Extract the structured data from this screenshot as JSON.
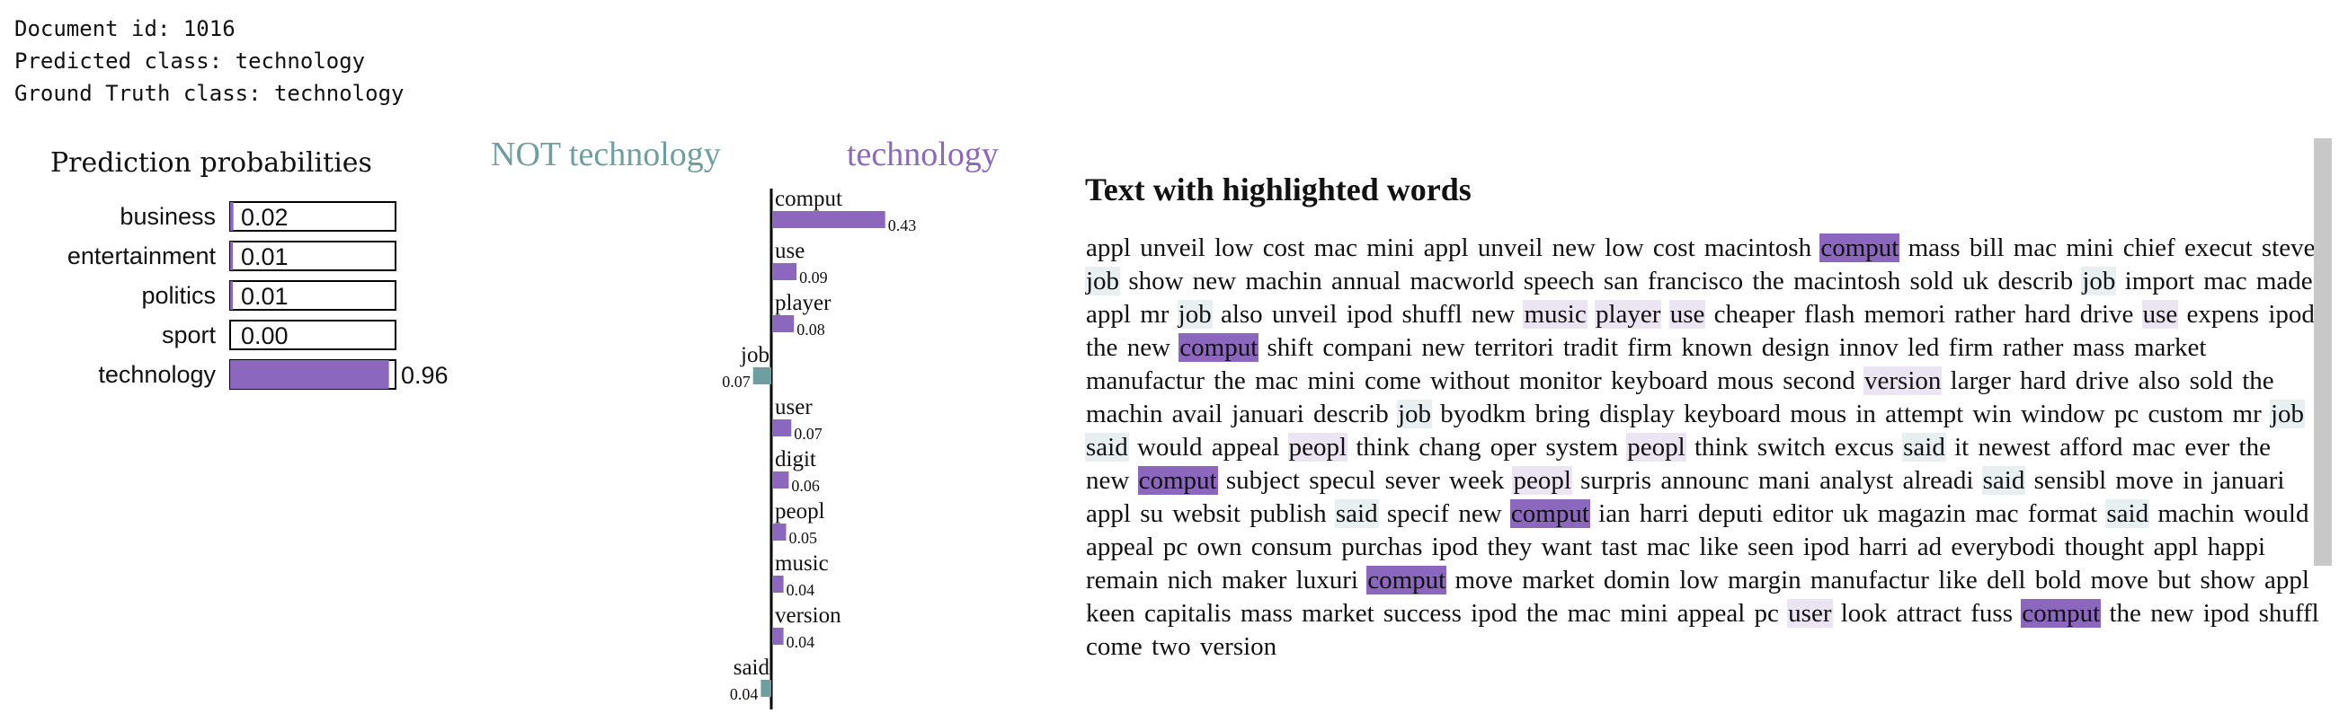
{
  "header": {
    "doc_id": "Document id: 1016",
    "predicted": "Predicted class: technology",
    "ground_truth": "Ground Truth class: technology"
  },
  "prob_panel": {
    "title": "Prediction probabilities"
  },
  "feat_panel": {
    "left_label": "NOT technology",
    "right_label": "technology"
  },
  "text_panel": {
    "title": "Text with highlighted words"
  },
  "colors": {
    "positive": "#8b67be",
    "negative": "#6d9ea0",
    "bar_border": "#000000"
  },
  "chart_data": [
    {
      "type": "bar",
      "orientation": "horizontal",
      "categories": [
        "business",
        "entertainment",
        "politics",
        "sport",
        "technology"
      ],
      "values": [
        0.02,
        0.01,
        0.01,
        0.0,
        0.96
      ],
      "value_labels": [
        "0.02",
        "0.01",
        "0.01",
        "0.00",
        "0.96"
      ],
      "xlim": [
        0,
        1
      ]
    },
    {
      "type": "bar",
      "orientation": "horizontal-diverging",
      "categories": [
        "comput",
        "use",
        "player",
        "job",
        "user",
        "digit",
        "peopl",
        "music",
        "version",
        "said"
      ],
      "values": [
        0.43,
        0.09,
        0.08,
        -0.07,
        0.07,
        0.06,
        0.05,
        0.04,
        0.04,
        -0.04
      ],
      "value_labels": [
        "0.43",
        "0.09",
        "0.08",
        "0.07",
        "0.07",
        "0.06",
        "0.05",
        "0.04",
        "0.04",
        "0.04"
      ]
    }
  ],
  "highlight_text": [
    [
      "appl",
      ""
    ],
    [
      "unveil",
      ""
    ],
    [
      "low",
      ""
    ],
    [
      "cost",
      ""
    ],
    [
      "mac",
      ""
    ],
    [
      "mini",
      ""
    ],
    [
      "appl",
      ""
    ],
    [
      "unveil",
      ""
    ],
    [
      "new",
      ""
    ],
    [
      "low",
      ""
    ],
    [
      "cost",
      ""
    ],
    [
      "macintosh",
      ""
    ],
    [
      "comput",
      "p3"
    ],
    [
      "mass",
      ""
    ],
    [
      "bill",
      ""
    ],
    [
      "mac",
      ""
    ],
    [
      "mini",
      ""
    ],
    [
      "chief",
      ""
    ],
    [
      "execut",
      ""
    ],
    [
      "steve",
      ""
    ],
    [
      "job",
      "n1"
    ],
    [
      "show",
      ""
    ],
    [
      "new",
      ""
    ],
    [
      "machin",
      ""
    ],
    [
      "annual",
      ""
    ],
    [
      "macworld",
      ""
    ],
    [
      "speech",
      ""
    ],
    [
      "san",
      ""
    ],
    [
      "francisco",
      ""
    ],
    [
      "the",
      ""
    ],
    [
      "macintosh",
      ""
    ],
    [
      "sold",
      ""
    ],
    [
      "uk",
      ""
    ],
    [
      "describ",
      ""
    ],
    [
      "job",
      "n1"
    ],
    [
      "import",
      ""
    ],
    [
      "mac",
      ""
    ],
    [
      "made",
      ""
    ],
    [
      "appl",
      ""
    ],
    [
      "mr",
      ""
    ],
    [
      "job",
      "n1"
    ],
    [
      "also",
      ""
    ],
    [
      "unveil",
      ""
    ],
    [
      "ipod",
      ""
    ],
    [
      "shuffl",
      ""
    ],
    [
      "new",
      ""
    ],
    [
      "music",
      "p1"
    ],
    [
      "player",
      "p1"
    ],
    [
      "use",
      "p1"
    ],
    [
      "cheaper",
      ""
    ],
    [
      "flash",
      ""
    ],
    [
      "memori",
      ""
    ],
    [
      "rather",
      ""
    ],
    [
      "hard",
      ""
    ],
    [
      "drive",
      ""
    ],
    [
      "use",
      "p1"
    ],
    [
      "expens",
      ""
    ],
    [
      "ipod",
      ""
    ],
    [
      "the",
      ""
    ],
    [
      "new",
      ""
    ],
    [
      "comput",
      "p3"
    ],
    [
      "shift",
      ""
    ],
    [
      "compani",
      ""
    ],
    [
      "new",
      ""
    ],
    [
      "territori",
      ""
    ],
    [
      "tradit",
      ""
    ],
    [
      "firm",
      ""
    ],
    [
      "known",
      ""
    ],
    [
      "design",
      ""
    ],
    [
      "innov",
      ""
    ],
    [
      "led",
      ""
    ],
    [
      "firm",
      ""
    ],
    [
      "rather",
      ""
    ],
    [
      "mass",
      ""
    ],
    [
      "market",
      ""
    ],
    [
      "manufactur",
      ""
    ],
    [
      "the",
      ""
    ],
    [
      "mac",
      ""
    ],
    [
      "mini",
      ""
    ],
    [
      "come",
      ""
    ],
    [
      "without",
      ""
    ],
    [
      "monitor",
      ""
    ],
    [
      "keyboard",
      ""
    ],
    [
      "mous",
      ""
    ],
    [
      "second",
      ""
    ],
    [
      "version",
      "p1"
    ],
    [
      "larger",
      ""
    ],
    [
      "hard",
      ""
    ],
    [
      "drive",
      ""
    ],
    [
      "also",
      ""
    ],
    [
      "sold",
      ""
    ],
    [
      "the",
      ""
    ],
    [
      "machin",
      ""
    ],
    [
      "avail",
      ""
    ],
    [
      "januari",
      ""
    ],
    [
      "describ",
      ""
    ],
    [
      "job",
      "n1"
    ],
    [
      "byodkm",
      ""
    ],
    [
      "bring",
      ""
    ],
    [
      "display",
      ""
    ],
    [
      "keyboard",
      ""
    ],
    [
      "mous",
      ""
    ],
    [
      "in",
      ""
    ],
    [
      "attempt",
      ""
    ],
    [
      "win",
      ""
    ],
    [
      "window",
      ""
    ],
    [
      "pc",
      ""
    ],
    [
      "custom",
      ""
    ],
    [
      "mr",
      ""
    ],
    [
      "job",
      "n1"
    ],
    [
      "said",
      "n1"
    ],
    [
      "would",
      ""
    ],
    [
      "appeal",
      ""
    ],
    [
      "peopl",
      "p1"
    ],
    [
      "think",
      ""
    ],
    [
      "chang",
      ""
    ],
    [
      "oper",
      ""
    ],
    [
      "system",
      ""
    ],
    [
      "peopl",
      "p1"
    ],
    [
      "think",
      ""
    ],
    [
      "switch",
      ""
    ],
    [
      "excus",
      ""
    ],
    [
      "said",
      "n1"
    ],
    [
      "it",
      ""
    ],
    [
      "newest",
      ""
    ],
    [
      "afford",
      ""
    ],
    [
      "mac",
      ""
    ],
    [
      "ever",
      ""
    ],
    [
      "the",
      ""
    ],
    [
      "new",
      ""
    ],
    [
      "comput",
      "p3"
    ],
    [
      "subject",
      ""
    ],
    [
      "specul",
      ""
    ],
    [
      "sever",
      ""
    ],
    [
      "week",
      ""
    ],
    [
      "peopl",
      "p1"
    ],
    [
      "surpris",
      ""
    ],
    [
      "announc",
      ""
    ],
    [
      "mani",
      ""
    ],
    [
      "analyst",
      ""
    ],
    [
      "alreadi",
      ""
    ],
    [
      "said",
      "n1"
    ],
    [
      "sensibl",
      ""
    ],
    [
      "move",
      ""
    ],
    [
      "in",
      ""
    ],
    [
      "januari",
      ""
    ],
    [
      "appl",
      ""
    ],
    [
      "su",
      ""
    ],
    [
      "websit",
      ""
    ],
    [
      "publish",
      ""
    ],
    [
      "said",
      "n1"
    ],
    [
      "specif",
      ""
    ],
    [
      "new",
      ""
    ],
    [
      "comput",
      "p3"
    ],
    [
      "ian",
      ""
    ],
    [
      "harri",
      ""
    ],
    [
      "deputi",
      ""
    ],
    [
      "editor",
      ""
    ],
    [
      "uk",
      ""
    ],
    [
      "magazin",
      ""
    ],
    [
      "mac",
      ""
    ],
    [
      "format",
      ""
    ],
    [
      "said",
      "n1"
    ],
    [
      "machin",
      ""
    ],
    [
      "would",
      ""
    ],
    [
      "appeal",
      ""
    ],
    [
      "pc",
      ""
    ],
    [
      "own",
      ""
    ],
    [
      "consum",
      ""
    ],
    [
      "purchas",
      ""
    ],
    [
      "ipod",
      ""
    ],
    [
      "they",
      ""
    ],
    [
      "want",
      ""
    ],
    [
      "tast",
      ""
    ],
    [
      "mac",
      ""
    ],
    [
      "like",
      ""
    ],
    [
      "seen",
      ""
    ],
    [
      "ipod",
      ""
    ],
    [
      "harri",
      ""
    ],
    [
      "ad",
      ""
    ],
    [
      "everybodi",
      ""
    ],
    [
      "thought",
      ""
    ],
    [
      "appl",
      ""
    ],
    [
      "happi",
      ""
    ],
    [
      "remain",
      ""
    ],
    [
      "nich",
      ""
    ],
    [
      "maker",
      ""
    ],
    [
      "luxuri",
      ""
    ],
    [
      "comput",
      "p3"
    ],
    [
      "move",
      ""
    ],
    [
      "market",
      ""
    ],
    [
      "domin",
      ""
    ],
    [
      "low",
      ""
    ],
    [
      "margin",
      ""
    ],
    [
      "manufactur",
      ""
    ],
    [
      "like",
      ""
    ],
    [
      "dell",
      ""
    ],
    [
      "bold",
      ""
    ],
    [
      "move",
      ""
    ],
    [
      "but",
      ""
    ],
    [
      "show",
      ""
    ],
    [
      "appl",
      ""
    ],
    [
      "keen",
      ""
    ],
    [
      "capitalis",
      ""
    ],
    [
      "mass",
      ""
    ],
    [
      "market",
      ""
    ],
    [
      "success",
      ""
    ],
    [
      "ipod",
      ""
    ],
    [
      "the",
      ""
    ],
    [
      "mac",
      ""
    ],
    [
      "mini",
      ""
    ],
    [
      "appeal",
      ""
    ],
    [
      "pc",
      ""
    ],
    [
      "user",
      "p1"
    ],
    [
      "look",
      ""
    ],
    [
      "attract",
      ""
    ],
    [
      "fuss",
      ""
    ],
    [
      "comput",
      "p3"
    ],
    [
      "the",
      ""
    ],
    [
      "new",
      ""
    ],
    [
      "ipod",
      ""
    ],
    [
      "shuffl",
      ""
    ],
    [
      "come",
      ""
    ],
    [
      "two",
      ""
    ],
    [
      "version",
      ""
    ]
  ]
}
